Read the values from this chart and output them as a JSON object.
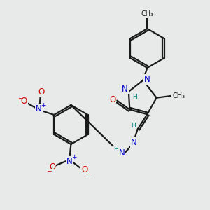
{
  "bg_color": "#e8eaea",
  "bond_color": "#1a1a1a",
  "bond_width": 1.6,
  "atom_colors": {
    "N": "#0000cc",
    "O": "#cc0000",
    "H": "#008080",
    "C": "#1a1a1a"
  },
  "font_size_atom": 8.5,
  "font_size_small": 6.5,
  "font_size_ch3": 7.0
}
